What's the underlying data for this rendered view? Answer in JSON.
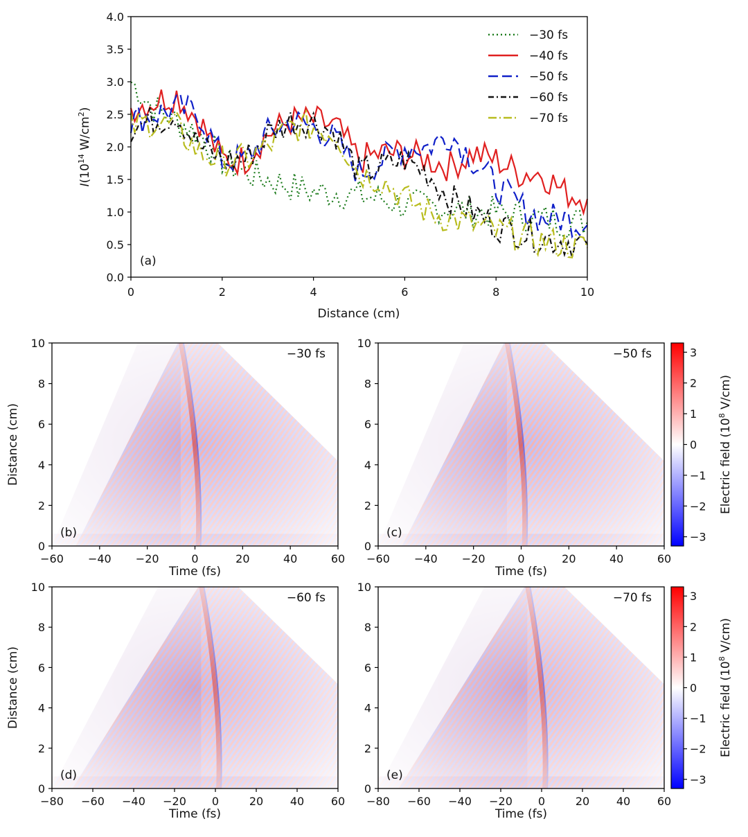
{
  "chart_data": [
    {
      "id": "a",
      "type": "line",
      "panel_label": "(a)",
      "xlabel": "Distance (cm)",
      "ylabel_prefix": "I",
      "ylabel_rest": "(10",
      "ylabel_sup1": "14",
      "ylabel_mid": " W/cm",
      "ylabel_sup2": "2",
      "ylabel_end": ")",
      "xlim": [
        0,
        10
      ],
      "ylim": [
        0,
        4
      ],
      "xticks": [
        "0",
        "2",
        "4",
        "6",
        "8",
        "10"
      ],
      "yticks": [
        "0.0",
        "0.5",
        "1.0",
        "1.5",
        "2.0",
        "2.5",
        "3.0",
        "3.5",
        "4.0"
      ],
      "legend_position": "top-right",
      "x": [
        0,
        0.5,
        1,
        1.5,
        2,
        2.5,
        3,
        3.5,
        4,
        4.5,
        5,
        5.5,
        6,
        6.5,
        7,
        7.5,
        8,
        8.5,
        9,
        9.5,
        10
      ],
      "series": [
        {
          "name": "−30 fs",
          "color": "#1a7a1a",
          "dash": "2,4",
          "values": [
            3.0,
            2.6,
            2.4,
            2.2,
            1.8,
            1.6,
            1.5,
            1.4,
            1.3,
            1.3,
            1.25,
            1.2,
            1.1,
            1.1,
            1.05,
            1.0,
            1.0,
            0.95,
            0.9,
            0.85,
            0.85
          ]
        },
        {
          "name": "−40 fs",
          "color": "#e02020",
          "dash": "",
          "values": [
            2.6,
            2.7,
            2.8,
            2.4,
            1.8,
            1.8,
            2.2,
            2.4,
            2.4,
            2.3,
            1.8,
            1.9,
            1.9,
            1.8,
            1.7,
            1.9,
            1.8,
            1.6,
            1.6,
            1.3,
            1.2
          ]
        },
        {
          "name": "−50 fs",
          "color": "#1020c8",
          "dash": "14,6",
          "values": [
            2.4,
            2.5,
            2.6,
            2.5,
            1.8,
            1.8,
            2.2,
            2.4,
            2.3,
            2.1,
            1.6,
            1.8,
            2.0,
            2.0,
            2.2,
            1.8,
            1.4,
            1.1,
            0.9,
            0.9,
            0.8
          ]
        },
        {
          "name": "−60 fs",
          "color": "#111111",
          "dash": "8,4,2,4",
          "values": [
            2.3,
            2.4,
            2.5,
            2.0,
            1.8,
            1.8,
            2.2,
            2.4,
            2.4,
            2.2,
            1.6,
            1.7,
            1.8,
            1.6,
            1.2,
            1.0,
            0.8,
            0.7,
            0.6,
            0.55,
            0.5
          ]
        },
        {
          "name": "−70 fs",
          "color": "#b8bc1e",
          "dash": "12,4,2,4",
          "values": [
            2.3,
            2.4,
            2.3,
            1.9,
            1.8,
            1.8,
            2.0,
            2.3,
            2.3,
            2.2,
            1.6,
            1.5,
            1.2,
            1.0,
            0.9,
            0.8,
            0.7,
            0.65,
            0.55,
            0.5,
            0.45
          ]
        }
      ]
    },
    {
      "id": "b",
      "type": "heatmap",
      "panel_label": "(b)",
      "delay_label": "−30 fs",
      "xlabel": "Time (fs)",
      "ylabel": "Distance (cm)",
      "xlim": [
        -60,
        60
      ],
      "ylim": [
        0,
        10
      ],
      "xticks": [
        "−60",
        "−40",
        "−20",
        "0",
        "20",
        "40",
        "60"
      ],
      "yticks": [
        "0",
        "2",
        "4",
        "6",
        "8",
        "10"
      ]
    },
    {
      "id": "c",
      "type": "heatmap",
      "panel_label": "(c)",
      "delay_label": "−50 fs",
      "xlabel": "Time (fs)",
      "ylabel": "",
      "xlim": [
        -60,
        60
      ],
      "ylim": [
        0,
        10
      ],
      "xticks": [
        "−60",
        "−40",
        "−20",
        "0",
        "20",
        "40",
        "60"
      ],
      "yticks": [
        "0",
        "2",
        "4",
        "6",
        "8",
        "10"
      ]
    },
    {
      "id": "d",
      "type": "heatmap",
      "panel_label": "(d)",
      "delay_label": "−60 fs",
      "xlabel": "Time (fs)",
      "ylabel": "Distance (cm)",
      "xlim": [
        -80,
        60
      ],
      "ylim": [
        0,
        10
      ],
      "xticks": [
        "−80",
        "−60",
        "−40",
        "−20",
        "0",
        "20",
        "40",
        "60"
      ],
      "yticks": [
        "0",
        "2",
        "4",
        "6",
        "8",
        "10"
      ]
    },
    {
      "id": "e",
      "type": "heatmap",
      "panel_label": "(e)",
      "delay_label": "−70 fs",
      "xlabel": "Time (fs)",
      "ylabel": "",
      "xlim": [
        -80,
        60
      ],
      "ylim": [
        0,
        10
      ],
      "xticks": [
        "−80",
        "−60",
        "−40",
        "−20",
        "0",
        "20",
        "40",
        "60"
      ],
      "yticks": [
        "0",
        "2",
        "4",
        "6",
        "8",
        "10"
      ]
    }
  ],
  "colorbar": {
    "label_pre": "Electric field (10",
    "label_sup": "8",
    "label_post": " V/cm)",
    "range": [
      -3.3,
      3.3
    ],
    "ticks": [
      "3",
      "2",
      "1",
      "0",
      "−1",
      "−2",
      "−3"
    ],
    "colors": [
      "#ff0000",
      "#ffffff",
      "#0000ff"
    ]
  }
}
